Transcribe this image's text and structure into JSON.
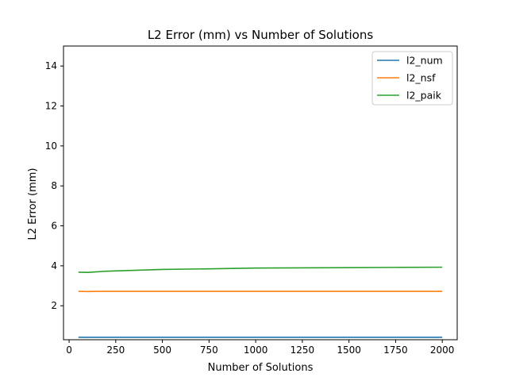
{
  "chart_data": {
    "type": "line",
    "title": "L2 Error (mm) vs Number of Solutions",
    "xlabel": "Number of Solutions",
    "ylabel": "L2 Error (mm)",
    "xlim": [
      -30,
      2080
    ],
    "ylim": [
      0.3,
      15
    ],
    "xticks": [
      0,
      250,
      500,
      750,
      1000,
      1250,
      1500,
      1750,
      2000
    ],
    "yticks": [
      2,
      4,
      6,
      8,
      10,
      12,
      14
    ],
    "grid": false,
    "legend_position": "upper right",
    "x": [
      50,
      100,
      150,
      200,
      300,
      400,
      500,
      750,
      1000,
      1250,
      1500,
      1750,
      2000
    ],
    "series": [
      {
        "name": "l2_num",
        "color": "#1f77b4",
        "values": [
          0.42,
          0.42,
          0.42,
          0.42,
          0.42,
          0.42,
          0.42,
          0.42,
          0.42,
          0.42,
          0.42,
          0.42,
          0.42
        ]
      },
      {
        "name": "l2_nsf",
        "color": "#ff7f0e",
        "values": [
          2.72,
          2.71,
          2.72,
          2.72,
          2.72,
          2.72,
          2.72,
          2.72,
          2.72,
          2.72,
          2.72,
          2.72,
          2.72
        ]
      },
      {
        "name": "l2_paik",
        "color": "#2ca02c",
        "values": [
          3.68,
          3.67,
          3.7,
          3.73,
          3.76,
          3.79,
          3.82,
          3.85,
          3.89,
          3.9,
          3.91,
          3.92,
          3.93
        ]
      }
    ]
  }
}
